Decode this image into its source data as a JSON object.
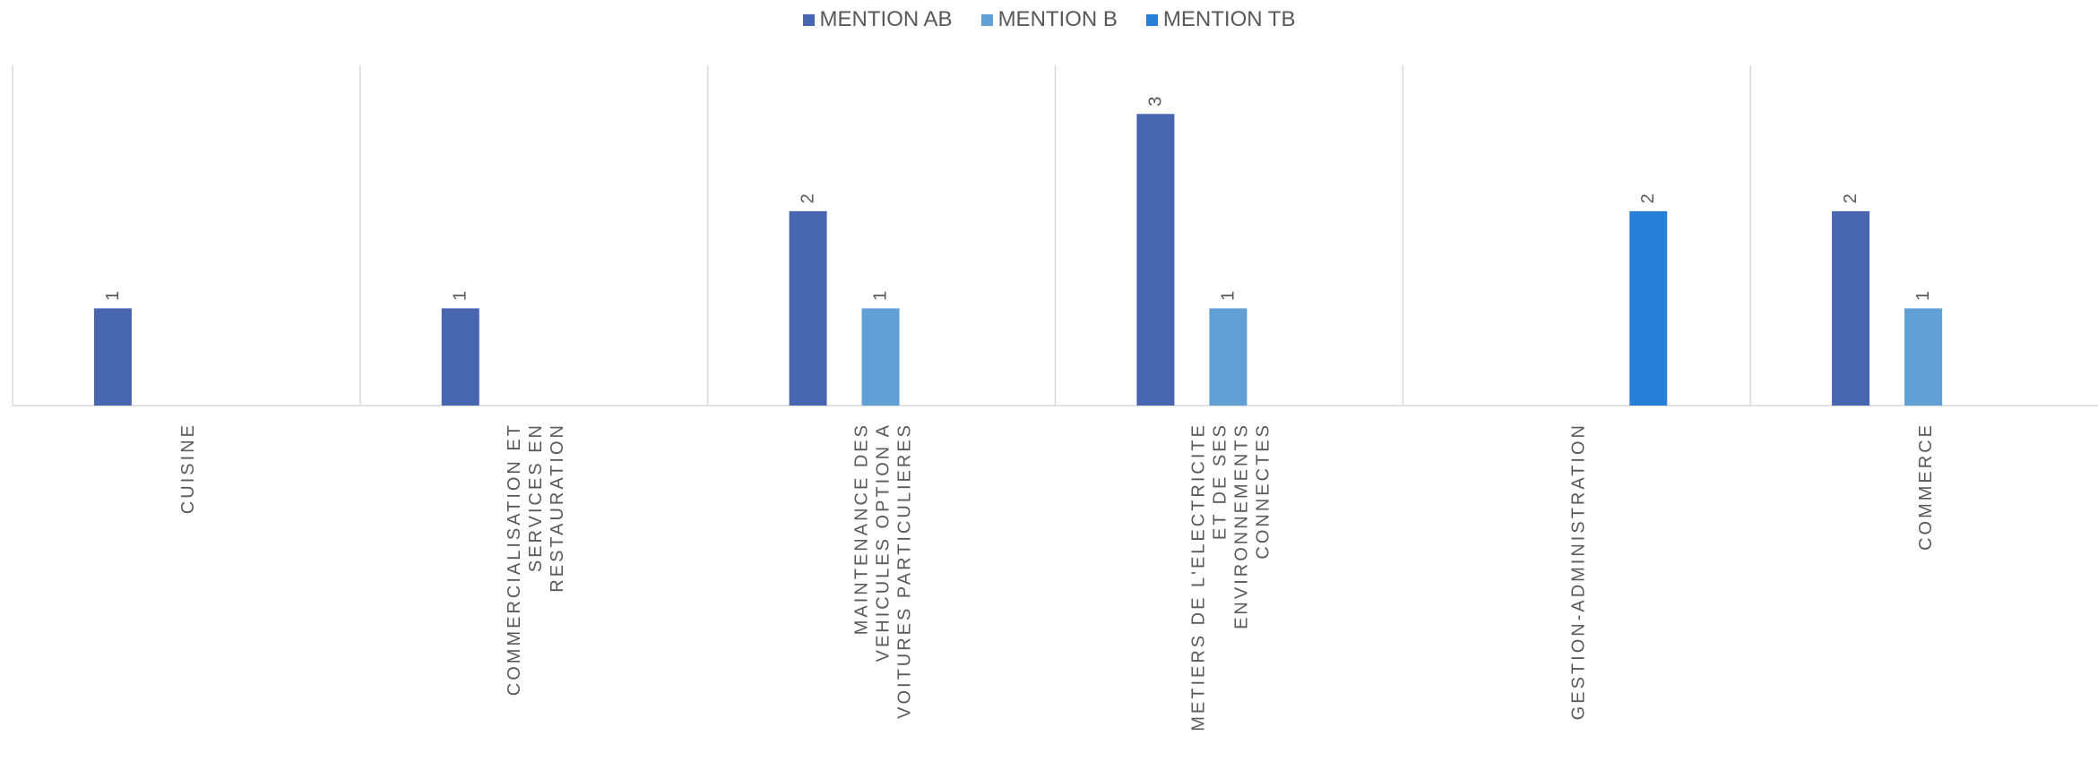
{
  "chart_data": {
    "type": "bar",
    "categories": [
      [
        "CUISINE"
      ],
      [
        "COMMERCIALISATION ET",
        "SERVICES EN",
        "RESTAURATION"
      ],
      [
        "MAINTENANCE DES",
        "VEHICULES OPTION A",
        "VOITURES PARTICULIERES"
      ],
      [
        "METIERS DE L'ELECTRICITE",
        "ET DE SES",
        "ENVIRONNEMENTS",
        "CONNECTES"
      ],
      [
        "GESTION-ADMINISTRATION"
      ],
      [
        "COMMERCE"
      ]
    ],
    "series": [
      {
        "name": "MENTION AB",
        "color": "#4866b0",
        "values": [
          1,
          1,
          2,
          3,
          null,
          2
        ]
      },
      {
        "name": "MENTION B",
        "color": "#629fd5",
        "values": [
          null,
          null,
          1,
          1,
          null,
          1
        ]
      },
      {
        "name": "MENTION TB",
        "color": "#287fd8",
        "values": [
          null,
          null,
          null,
          null,
          2,
          null
        ]
      }
    ],
    "ylim": [
      0,
      3.5
    ],
    "legend_position": "top-center",
    "data_labels": true,
    "grid": false,
    "category_separators": true
  }
}
